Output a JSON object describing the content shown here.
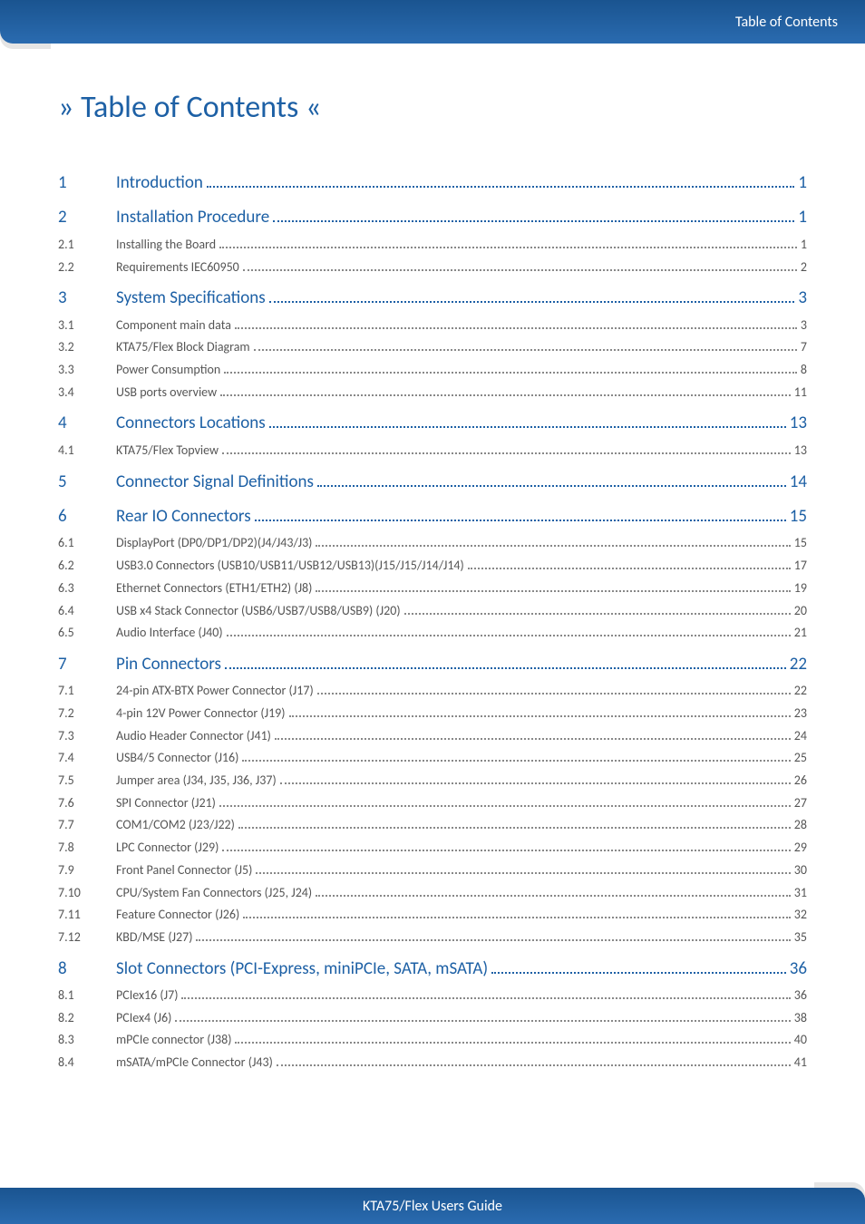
{
  "header": {
    "text": "Table of Contents"
  },
  "title": "» Table of Contents «",
  "footer": {
    "text": "KTA75/Flex Users Guide"
  },
  "toc": [
    {
      "level": 1,
      "num": "1",
      "label": "Introduction",
      "page": "1"
    },
    {
      "level": 1,
      "num": "2",
      "label": "Installation Procedure",
      "page": "1"
    },
    {
      "level": 2,
      "num": "2.1",
      "label": "Installing the Board",
      "page": "1"
    },
    {
      "level": 2,
      "num": "2.2",
      "label": "Requirements IEC60950",
      "page": "2"
    },
    {
      "level": 1,
      "num": "3",
      "label": "System Specifications",
      "page": "3"
    },
    {
      "level": 2,
      "num": "3.1",
      "label": "Component main data",
      "page": "3"
    },
    {
      "level": 2,
      "num": "3.2",
      "label": "KTA75/Flex Block Diagram",
      "page": "7"
    },
    {
      "level": 2,
      "num": "3.3",
      "label": "Power Consumption",
      "page": "8"
    },
    {
      "level": 2,
      "num": "3.4",
      "label": "USB ports overview",
      "page": "11"
    },
    {
      "level": 1,
      "num": "4",
      "label": "Connectors Locations",
      "page": "13"
    },
    {
      "level": 2,
      "num": "4.1",
      "label": "KTA75/Flex Topview",
      "page": "13"
    },
    {
      "level": 1,
      "num": "5",
      "label": "Connector Signal Definitions",
      "page": "14"
    },
    {
      "level": 1,
      "num": "6",
      "label": "Rear IO Connectors",
      "page": "15"
    },
    {
      "level": 2,
      "num": "6.1",
      "label": "DisplayPort (DP0/DP1/DP2)(J4/J43/J3)",
      "page": "15"
    },
    {
      "level": 2,
      "num": "6.2",
      "label": "USB3.0 Connectors (USB10/USB11/USB12/USB13)(J15/J15/J14/J14)",
      "page": "17"
    },
    {
      "level": 2,
      "num": "6.3",
      "label": "Ethernet Connectors (ETH1/ETH2) (J8)",
      "page": "19"
    },
    {
      "level": 2,
      "num": "6.4",
      "label": "USB x4 Stack Connector (USB6/USB7/USB8/USB9) (J20)",
      "page": "20"
    },
    {
      "level": 2,
      "num": "6.5",
      "label": "Audio Interface (J40)",
      "page": "21"
    },
    {
      "level": 1,
      "num": "7",
      "label": "Pin Connectors",
      "page": "22"
    },
    {
      "level": 2,
      "num": "7.1",
      "label": "24-pin ATX-BTX Power Connector (J17)",
      "page": "22"
    },
    {
      "level": 2,
      "num": "7.2",
      "label": "4-pin 12V Power Connector (J19)",
      "page": "23"
    },
    {
      "level": 2,
      "num": "7.3",
      "label": "Audio Header Connector (J41)",
      "page": "24"
    },
    {
      "level": 2,
      "num": "7.4",
      "label": "USB4/5 Connector (J16)",
      "page": "25"
    },
    {
      "level": 2,
      "num": "7.5",
      "label": "Jumper area (J34, J35, J36, J37)",
      "page": "26"
    },
    {
      "level": 2,
      "num": "7.6",
      "label": "SPI Connector (J21)",
      "page": "27"
    },
    {
      "level": 2,
      "num": "7.7",
      "label": "COM1/COM2 (J23/J22)",
      "page": "28"
    },
    {
      "level": 2,
      "num": "7.8",
      "label": "LPC Connector (J29)",
      "page": "29"
    },
    {
      "level": 2,
      "num": "7.9",
      "label": "Front Panel Connector (J5)",
      "page": "30"
    },
    {
      "level": 2,
      "num": "7.10",
      "label": "CPU/System Fan Connectors (J25, J24)",
      "page": "31"
    },
    {
      "level": 2,
      "num": "7.11",
      "label": "Feature Connector (J26)",
      "page": "32"
    },
    {
      "level": 2,
      "num": "7.12",
      "label": "KBD/MSE (J27)",
      "page": "35"
    },
    {
      "level": 1,
      "num": "8",
      "label": "Slot Connectors (PCI-Express, miniPCIe, SATA, mSATA)",
      "page": "36"
    },
    {
      "level": 2,
      "num": "8.1",
      "label": "PCIex16 (J7)",
      "page": "36"
    },
    {
      "level": 2,
      "num": "8.2",
      "label": "PCIex4  (J6)",
      "page": "38"
    },
    {
      "level": 2,
      "num": "8.3",
      "label": "mPCIe connector (J38)",
      "page": "40"
    },
    {
      "level": 2,
      "num": "8.4",
      "label": "mSATA/mPCIe Connector (J43)",
      "page": "41"
    }
  ],
  "colors": {
    "accent": "#1d60a5",
    "banner_top": "#1a5490",
    "banner_bottom": "#2a6bb0",
    "text_muted": "#555555",
    "page_bg": "#ffffff"
  },
  "fonts": {
    "title_size": 34,
    "lvl1_size": 19,
    "lvl2_size": 14,
    "banner_size": 16
  }
}
